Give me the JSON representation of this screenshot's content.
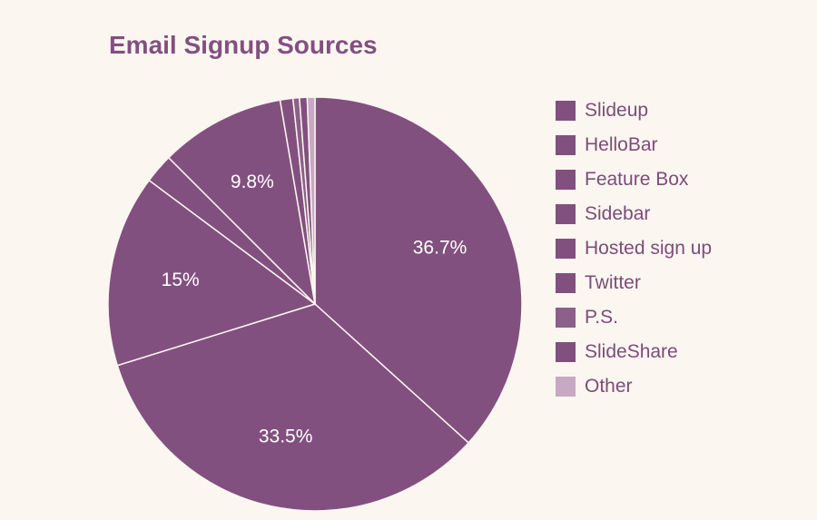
{
  "chart_data": {
    "type": "pie",
    "title": "Email Signup Sources",
    "legend_position": "right",
    "slices": [
      {
        "name": "Slideup",
        "value": 36.7,
        "label": "36.7%",
        "color": "#82507f"
      },
      {
        "name": "HelloBar",
        "value": 33.5,
        "label": "33.5%",
        "color": "#82507f"
      },
      {
        "name": "Feature Box",
        "value": 15,
        "label": "15%",
        "color": "#82507f"
      },
      {
        "name": "Sidebar",
        "value": 2.3,
        "label": "",
        "color": "#82507f"
      },
      {
        "name": "Hosted sign up",
        "value": 9.8,
        "label": "9.8%",
        "color": "#82507f"
      },
      {
        "name": "Twitter",
        "value": 1.0,
        "label": "",
        "color": "#82507f"
      },
      {
        "name": "P.S.",
        "value": 0.5,
        "label": "",
        "color": "#8c6088"
      },
      {
        "name": "SlideShare",
        "value": 0.6,
        "label": "",
        "color": "#82507f"
      },
      {
        "name": "Other",
        "value": 0.6,
        "label": "",
        "color": "#c7a9c3"
      }
    ]
  }
}
